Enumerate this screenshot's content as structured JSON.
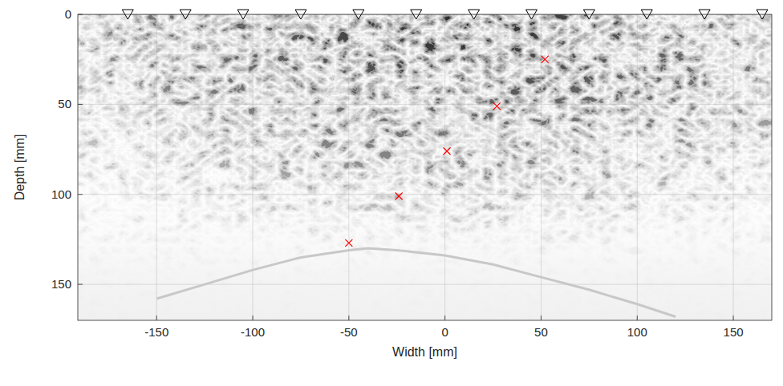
{
  "chart_data": {
    "type": "scatter",
    "xlabel": "Width [mm]",
    "ylabel": "Depth [mm]",
    "xlim": [
      -191,
      170
    ],
    "ylim": [
      170,
      0
    ],
    "xticks": [
      -150,
      -100,
      -50,
      0,
      50,
      100,
      150
    ],
    "yticks": [
      0,
      50,
      100,
      150
    ],
    "grid": true,
    "series": [
      {
        "type": "scatter",
        "marker": "triangle-down",
        "color": "#000000",
        "x": [
          -165,
          -135,
          -105,
          -75,
          -45,
          -15,
          15,
          45,
          75,
          105,
          135,
          165
        ],
        "values": [
          0,
          0,
          0,
          0,
          0,
          0,
          0,
          0,
          0,
          0,
          0,
          0
        ]
      },
      {
        "type": "scatter",
        "marker": "x",
        "color": "#ff0000",
        "x": [
          52,
          27,
          1,
          -24,
          -50
        ],
        "values": [
          25,
          51,
          76,
          101,
          127
        ]
      },
      {
        "type": "line",
        "line_style": "solid",
        "color": "#c8c8c8",
        "x": [
          -150,
          -125,
          -100,
          -75,
          -50,
          -40,
          -25,
          0,
          25,
          50,
          75,
          100,
          120
        ],
        "values": [
          158,
          150,
          142,
          135,
          131,
          130,
          131,
          134,
          139,
          146,
          153,
          161,
          168
        ]
      }
    ]
  }
}
